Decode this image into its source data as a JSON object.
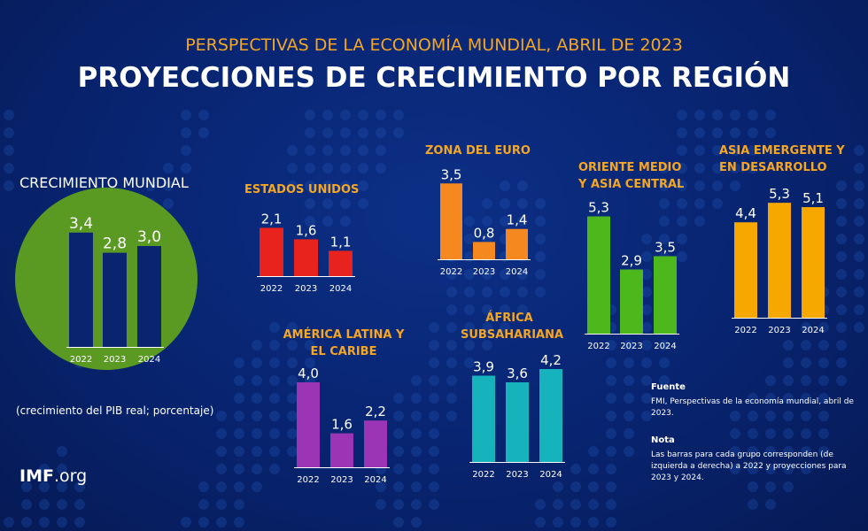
{
  "header": {
    "subtitle": "PERSPECTIVAS DE LA ECONOMÍA MUNDIAL, ABRIL DE 2023",
    "title": "PROYECCIONES DE CRECIMIENTO POR REGIÓN"
  },
  "caption": "(crecimiento del PIB real; porcentaje)",
  "logo": {
    "main": "IMF",
    "suffix": ".org"
  },
  "notes": {
    "source_heading": "Fuente",
    "source_text": "FMI, Perspectivas de la economía mundial, abril de 2023.",
    "note_heading": "Nota",
    "note_text": "Las barras para cada grupo corresponden (de izquierda a derecha) a 2022 y proyecciones para 2023 y 2024."
  },
  "colors": {
    "background": "#082470",
    "title_accent": "#f5a623",
    "world_circle": "#5a9a23"
  },
  "chart_data": [
    {
      "type": "bar",
      "title": "CRECIMIENTO MUNDIAL",
      "categories": [
        "2022",
        "2023",
        "2024"
      ],
      "values": [
        3.4,
        2.8,
        3.0
      ],
      "labels": [
        "3,4",
        "2,8",
        "3,0"
      ],
      "color": "#0a2470"
    },
    {
      "type": "bar",
      "title": "ESTADOS UNIDOS",
      "categories": [
        "2022",
        "2023",
        "2024"
      ],
      "values": [
        2.1,
        1.6,
        1.1
      ],
      "labels": [
        "2,1",
        "1,6",
        "1,1"
      ],
      "color": "#e8231d"
    },
    {
      "type": "bar",
      "title": "ZONA DEL EURO",
      "categories": [
        "2022",
        "2023",
        "2024"
      ],
      "values": [
        3.5,
        0.8,
        1.4
      ],
      "labels": [
        "3,5",
        "0,8",
        "1,4"
      ],
      "color": "#f5891f"
    },
    {
      "type": "bar",
      "title": "ORIENTE MEDIO Y ASIA CENTRAL",
      "categories": [
        "2022",
        "2023",
        "2024"
      ],
      "values": [
        5.3,
        2.9,
        3.5
      ],
      "labels": [
        "5,3",
        "2,9",
        "3,5"
      ],
      "color": "#4db81c"
    },
    {
      "type": "bar",
      "title": "ASIA EMERGENTE Y EN DESARROLLO",
      "categories": [
        "2022",
        "2023",
        "2024"
      ],
      "values": [
        4.4,
        5.3,
        5.1
      ],
      "labels": [
        "4,4",
        "5,3",
        "5,1"
      ],
      "color": "#f7a800"
    },
    {
      "type": "bar",
      "title": "AMÉRICA LATINA Y EL CARIBE",
      "categories": [
        "2022",
        "2023",
        "2024"
      ],
      "values": [
        4.0,
        1.6,
        2.2
      ],
      "labels": [
        "4,0",
        "1,6",
        "2,2"
      ],
      "color": "#9b35b5"
    },
    {
      "type": "bar",
      "title": "ÁFRICA SUBSAHARIANA",
      "categories": [
        "2022",
        "2023",
        "2024"
      ],
      "values": [
        3.9,
        3.6,
        4.2
      ],
      "labels": [
        "3,9",
        "3,6",
        "4,2"
      ],
      "color": "#16b3bd"
    }
  ]
}
